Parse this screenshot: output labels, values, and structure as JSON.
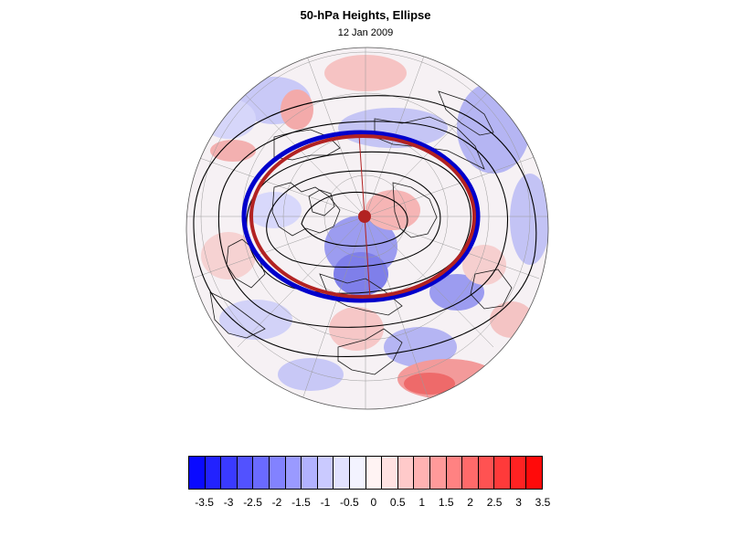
{
  "title": "50-hPa Heights, Ellipse",
  "subtitle": "12 Jan 2009",
  "colors": {
    "ellipse_fit": "#b22222",
    "ellipse_edge": "#0000cc",
    "contour": "#000000",
    "coast": "#1a1a1a",
    "grid": "#9a9a9a"
  },
  "colorbar": {
    "fill_colors": [
      "#0a0aff",
      "#2222ff",
      "#3a3aff",
      "#5252ff",
      "#6a6aff",
      "#8282ff",
      "#9a9aff",
      "#b2b2ff",
      "#cacaff",
      "#e2e2ff",
      "#f3f3ff",
      "#fff3f3",
      "#ffe2e2",
      "#ffcaca",
      "#ffb2b2",
      "#ff9a9a",
      "#ff8282",
      "#ff6a6a",
      "#ff5252",
      "#ff3a3a",
      "#ff2222",
      "#ff0a0a"
    ],
    "tick_labels": [
      "-3.5",
      "-3",
      "-2.5",
      "-2",
      "-1.5",
      "-1",
      "-0.5",
      "0",
      "0.5",
      "1",
      "1.5",
      "2",
      "2.5",
      "3",
      "3.5"
    ]
  }
}
